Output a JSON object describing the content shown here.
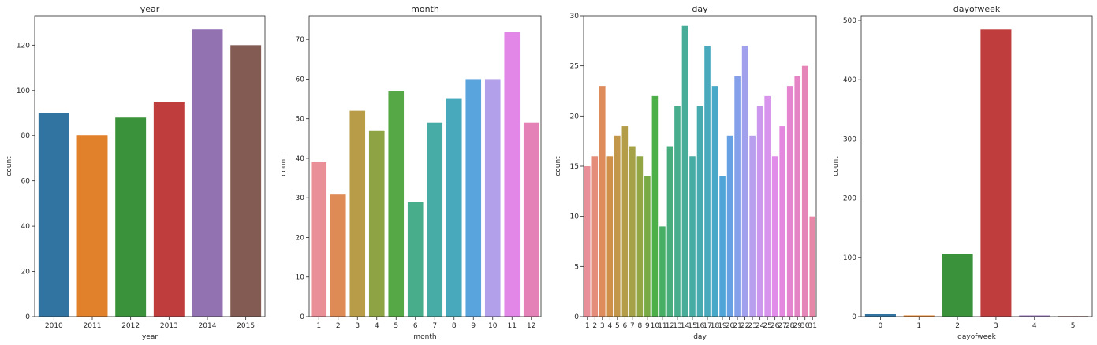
{
  "chart_data": [
    {
      "type": "bar",
      "title": "year",
      "xlabel": "year",
      "ylabel": "count",
      "categories": [
        "2010",
        "2011",
        "2012",
        "2013",
        "2014",
        "2015"
      ],
      "values": [
        90,
        80,
        88,
        95,
        127,
        120
      ],
      "ylim": [
        0,
        133
      ],
      "yticks": [
        0,
        20,
        40,
        60,
        80,
        100,
        120
      ],
      "colors": [
        "#3274a1",
        "#e1812c",
        "#3a923a",
        "#c03d3e",
        "#9372b2",
        "#845b53"
      ],
      "grid": false,
      "legend": false
    },
    {
      "type": "bar",
      "title": "month",
      "xlabel": "month",
      "ylabel": "count",
      "categories": [
        "1",
        "2",
        "3",
        "4",
        "5",
        "6",
        "7",
        "8",
        "9",
        "10",
        "11",
        "12"
      ],
      "values": [
        39,
        31,
        52,
        47,
        57,
        29,
        49,
        55,
        60,
        60,
        72,
        49
      ],
      "ylim": [
        0,
        76
      ],
      "yticks": [
        0,
        10,
        20,
        30,
        40,
        50,
        60,
        70
      ],
      "colors": [
        "#e88f98",
        "#de8b55",
        "#b89c48",
        "#8ea444",
        "#55a845",
        "#47ad8b",
        "#47aca6",
        "#48a9bd",
        "#5aa4de",
        "#b2a0ea",
        "#e287e8",
        "#e482b8"
      ],
      "grid": false,
      "legend": false
    },
    {
      "type": "bar",
      "title": "day",
      "xlabel": "day",
      "ylabel": "count",
      "categories": [
        "1",
        "2",
        "3",
        "4",
        "5",
        "6",
        "7",
        "8",
        "9",
        "10",
        "11",
        "12",
        "13",
        "14",
        "15",
        "16",
        "17",
        "18",
        "19",
        "20",
        "21",
        "22",
        "23",
        "24",
        "25",
        "26",
        "27",
        "28",
        "29",
        "30",
        "31"
      ],
      "values": [
        15,
        16,
        23,
        16,
        18,
        19,
        17,
        16,
        14,
        22,
        9,
        17,
        21,
        29,
        16,
        21,
        27,
        23,
        14,
        18,
        24,
        27,
        18,
        21,
        22,
        16,
        19,
        23,
        24,
        25,
        10
      ],
      "ylim": [
        0,
        30
      ],
      "yticks": [
        0,
        5,
        10,
        15,
        20,
        25,
        30
      ],
      "colors": [
        "#e88f98",
        "#e48d7a",
        "#df8c5d",
        "#cf9049",
        "#c29749",
        "#b49d48",
        "#a5a146",
        "#92a645",
        "#77aa45",
        "#4daf47",
        "#47ae66",
        "#47ad7c",
        "#47ad8c",
        "#47ad98",
        "#47aca4",
        "#47abb0",
        "#48aabc",
        "#48a8c8",
        "#4fa5d8",
        "#67a0e3",
        "#85a0ea",
        "#a1a0ed",
        "#b99eee",
        "#cb98ed",
        "#d893ec",
        "#e28cea",
        "#e487de",
        "#e585d0",
        "#e584c4",
        "#e585b8",
        "#e687a8"
      ],
      "grid": false,
      "legend": false
    },
    {
      "type": "bar",
      "title": "dayofweek",
      "xlabel": "dayofweek",
      "ylabel": "count",
      "categories": [
        "0",
        "1",
        "2",
        "3",
        "4",
        "5"
      ],
      "values": [
        4,
        2,
        106,
        485,
        2,
        1
      ],
      "ylim": [
        0,
        508
      ],
      "yticks": [
        0,
        100,
        200,
        300,
        400,
        500
      ],
      "colors": [
        "#3274a1",
        "#e1812c",
        "#3a923a",
        "#c03d3e",
        "#9372b2",
        "#845b53"
      ],
      "grid": false,
      "legend": false
    }
  ]
}
